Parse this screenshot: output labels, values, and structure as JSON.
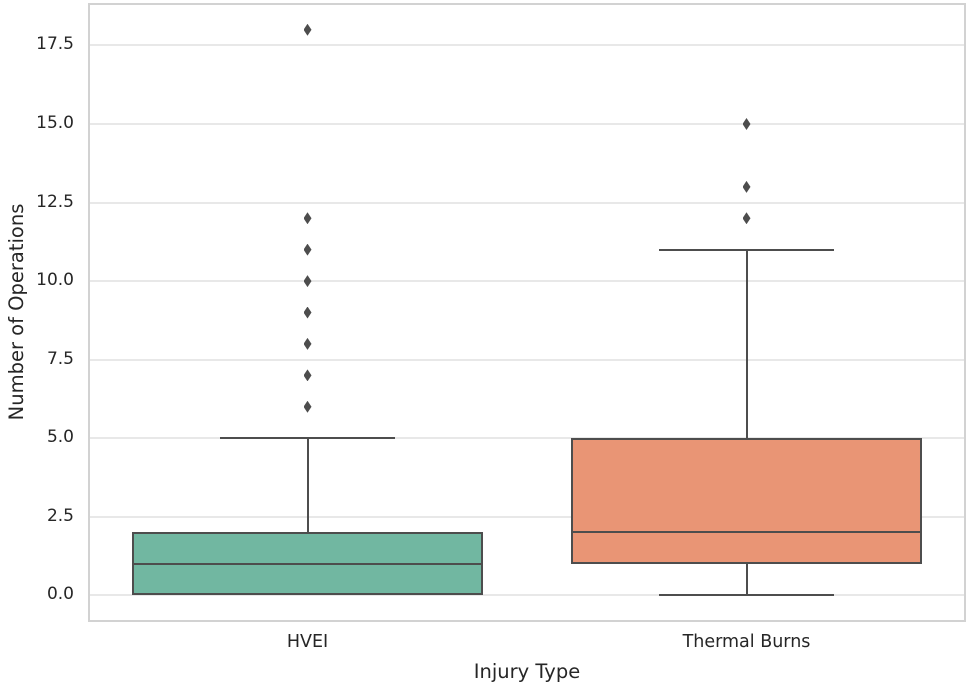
{
  "chart_data": {
    "type": "box",
    "title": "",
    "xlabel": "Injury Type",
    "ylabel": "Number of Operations",
    "categories": [
      "HVEI",
      "Thermal Burns"
    ],
    "series": [
      {
        "name": "HVEI",
        "whislo": 0,
        "q1": 0,
        "med": 1,
        "q3": 2,
        "whishi": 5,
        "fliers": [
          6,
          7,
          8,
          9,
          10,
          11,
          12,
          18
        ],
        "color": "#71b7a1"
      },
      {
        "name": "Thermal Burns",
        "whislo": 0,
        "q1": 1,
        "med": 2,
        "q3": 5,
        "whishi": 11,
        "fliers": [
          12,
          13,
          15
        ],
        "color": "#e99575"
      }
    ],
    "yticks": [
      0.0,
      2.5,
      5.0,
      7.5,
      10.0,
      12.5,
      15.0,
      17.5
    ],
    "ytick_labels": [
      "0.0",
      "2.5",
      "5.0",
      "7.5",
      "10.0",
      "12.5",
      "15.0",
      "17.5"
    ],
    "ylim": [
      -0.85,
      18.85
    ],
    "box_width_frac": 0.8,
    "grid": "horizontal",
    "legend": "none",
    "colors": {
      "line": "#4d4d4d",
      "grid": "#e8e8e8",
      "spine": "#d2d2d2",
      "text": "#262626",
      "background": "#ffffff"
    }
  }
}
